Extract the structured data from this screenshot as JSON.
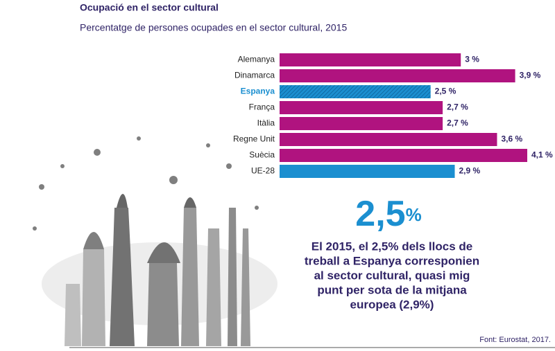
{
  "chart_data": {
    "type": "hbar",
    "title": "Ocupació en el sector cultural",
    "subtitle": "Percentatge de persones ocupades en el sector cultural, 2015",
    "categories": [
      "Alemanya",
      "Dinamarca",
      "Espanya",
      "França",
      "Itàlia",
      "Regne Unit",
      "Suècia",
      "UE-28"
    ],
    "values": [
      3,
      3.9,
      2.5,
      2.7,
      2.7,
      3.6,
      4.1,
      2.9
    ],
    "value_labels": [
      "3 %",
      "3,9 %",
      "2,5 %",
      "2,7 %",
      "2,7 %",
      "3,6 %",
      "4,1 %",
      "2,9 %"
    ],
    "colors": [
      "#b0137f",
      "#b0137f",
      "#1b8fd0",
      "#b0137f",
      "#b0137f",
      "#b0137f",
      "#b0137f",
      "#1b8fd0"
    ],
    "highlight": [
      false,
      false,
      true,
      false,
      false,
      false,
      false,
      false
    ],
    "xlim": [
      0,
      4.1
    ],
    "annotation": {
      "value": "2,5",
      "unit": "%",
      "lines": [
        "El 2015, el 2,5% dels llocs de",
        "treball a Espanya corresponien",
        "al sector cultural, quasi mig",
        "punt per sota de la mitjana",
        "europea (2,9%)"
      ]
    },
    "source": "Font: Eurostat, 2017."
  }
}
